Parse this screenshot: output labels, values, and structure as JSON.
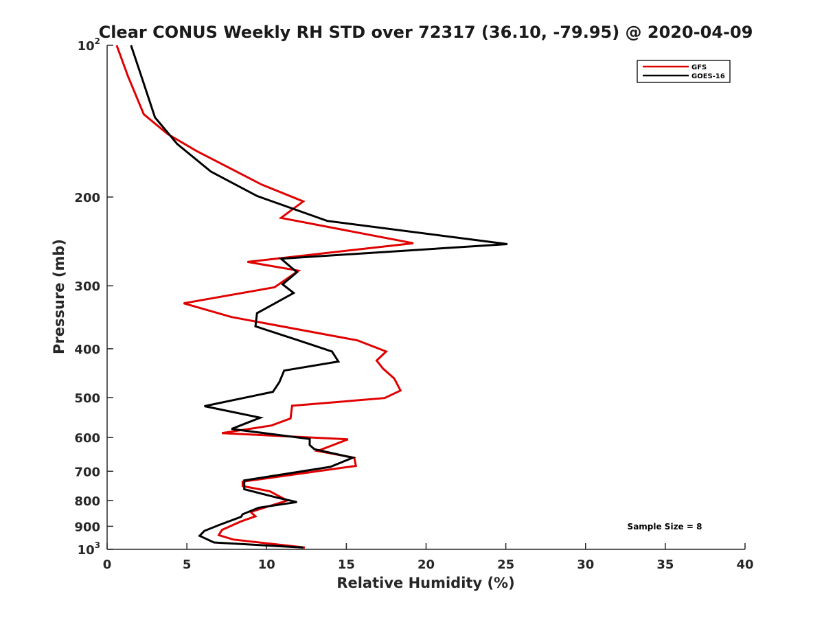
{
  "chart_data": {
    "type": "line",
    "title": "Clear CONUS Weekly RH STD over 72317 (36.10, -79.95) @ 2020-04-09",
    "xlabel": "Relative Humidity (%)",
    "ylabel": "Pressure (mb)",
    "xlim": [
      0,
      40
    ],
    "ylim": [
      100,
      1000
    ],
    "y_scale": "log",
    "y_reversed": true,
    "grid": false,
    "legend_position": "top-right",
    "x_ticks": [
      "0",
      "5",
      "10",
      "15",
      "20",
      "25",
      "30",
      "35",
      "40"
    ],
    "y_ticks": [
      {
        "value": 100,
        "base": "10",
        "exp": "2"
      },
      {
        "value": 200,
        "label": "200"
      },
      {
        "value": 300,
        "label": "300"
      },
      {
        "value": 400,
        "label": "400"
      },
      {
        "value": 500,
        "label": "500"
      },
      {
        "value": 600,
        "label": "600"
      },
      {
        "value": 700,
        "label": "700"
      },
      {
        "value": 800,
        "label": "800"
      },
      {
        "value": 900,
        "label": "900"
      },
      {
        "value": 1000,
        "base": "10",
        "exp": "3"
      }
    ],
    "annotation": "Sample Size = 8",
    "series": [
      {
        "name": "GFS",
        "color": "#e00000",
        "points": [
          [
            0.6,
            100
          ],
          [
            1.3,
            115
          ],
          [
            2.3,
            137
          ],
          [
            3.8,
            150
          ],
          [
            5.6,
            162
          ],
          [
            9.7,
            189
          ],
          [
            12.3,
            204
          ],
          [
            10.9,
            220
          ],
          [
            19.2,
            247
          ],
          [
            8.8,
            269
          ],
          [
            12.0,
            280
          ],
          [
            10.5,
            302
          ],
          [
            4.8,
            325
          ],
          [
            7.8,
            346
          ],
          [
            15.7,
            385
          ],
          [
            17.5,
            405
          ],
          [
            16.9,
            422
          ],
          [
            17.3,
            438
          ],
          [
            18.0,
            458
          ],
          [
            18.4,
            484
          ],
          [
            17.4,
            501
          ],
          [
            11.6,
            519
          ],
          [
            11.5,
            550
          ],
          [
            10.3,
            568
          ],
          [
            7.2,
            588
          ],
          [
            15.1,
            605
          ],
          [
            13.2,
            638
          ],
          [
            15.5,
            658
          ],
          [
            15.6,
            683
          ],
          [
            8.5,
            734
          ],
          [
            8.5,
            749
          ],
          [
            10.2,
            767
          ],
          [
            11.3,
            800
          ],
          [
            9.0,
            843
          ],
          [
            9.3,
            860
          ],
          [
            8.4,
            880
          ],
          [
            7.2,
            915
          ],
          [
            7.0,
            937
          ],
          [
            7.9,
            956
          ],
          [
            12.4,
            992
          ]
        ]
      },
      {
        "name": "GOES-16",
        "color": "#000000",
        "points": [
          [
            1.5,
            100
          ],
          [
            2.1,
            114
          ],
          [
            3.0,
            139
          ],
          [
            4.4,
            157
          ],
          [
            6.5,
            178
          ],
          [
            9.4,
            199
          ],
          [
            13.8,
            223
          ],
          [
            25.1,
            248
          ],
          [
            10.9,
            265
          ],
          [
            11.9,
            282
          ],
          [
            11.0,
            298
          ],
          [
            11.7,
            310
          ],
          [
            9.4,
            340
          ],
          [
            9.3,
            361
          ],
          [
            12.0,
            385
          ],
          [
            14.1,
            405
          ],
          [
            14.5,
            424
          ],
          [
            11.1,
            442
          ],
          [
            10.8,
            466
          ],
          [
            10.4,
            487
          ],
          [
            6.1,
            520
          ],
          [
            9.6,
            548
          ],
          [
            7.8,
            577
          ],
          [
            12.7,
            604
          ],
          [
            12.7,
            621
          ],
          [
            13.0,
            633
          ],
          [
            15.4,
            658
          ],
          [
            14.0,
            686
          ],
          [
            8.6,
            730
          ],
          [
            8.6,
            760
          ],
          [
            10.7,
            790
          ],
          [
            11.9,
            806
          ],
          [
            9.5,
            827
          ],
          [
            8.5,
            852
          ],
          [
            8.4,
            862
          ],
          [
            7.1,
            893
          ],
          [
            6.1,
            919
          ],
          [
            5.8,
            940
          ],
          [
            6.7,
            969
          ],
          [
            12.3,
            992
          ]
        ]
      }
    ]
  }
}
